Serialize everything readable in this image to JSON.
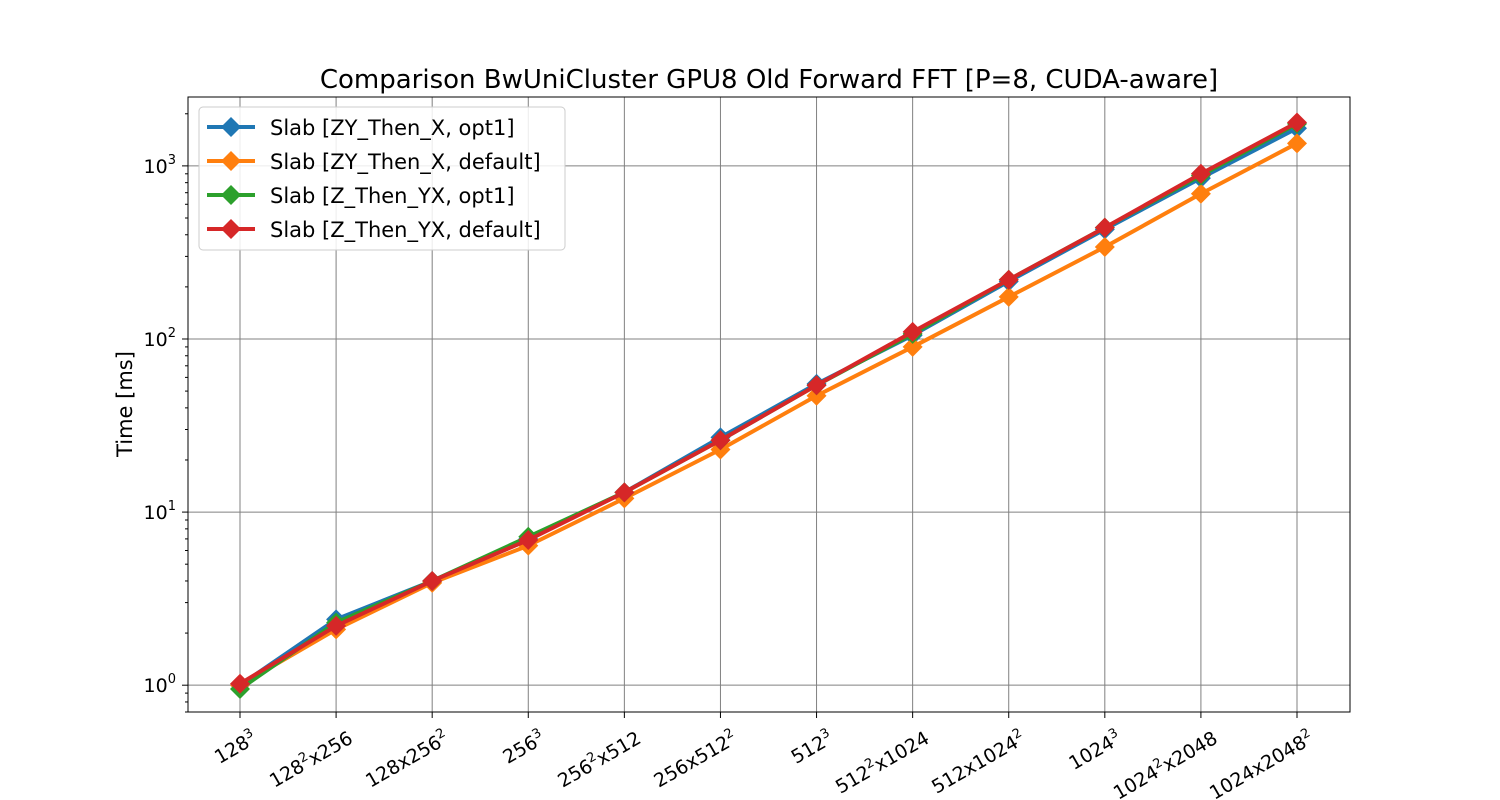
{
  "chart_data": {
    "type": "line",
    "title": "Comparison BwUniCluster GPU8 Old Forward FFT [P=8, CUDA-aware]",
    "xlabel": "",
    "ylabel": "Time [ms]",
    "yscale": "log",
    "ylim": [
      0.7,
      2500
    ],
    "grid": true,
    "legend_position": "top-left",
    "categories": [
      {
        "base": "128",
        "sup": "3",
        "tail": ""
      },
      {
        "base": "128",
        "sup": "2",
        "tail": "x256"
      },
      {
        "base": "128x256",
        "sup": "2",
        "tail": ""
      },
      {
        "base": "256",
        "sup": "3",
        "tail": ""
      },
      {
        "base": "256",
        "sup": "2",
        "tail": "x512"
      },
      {
        "base": "256x512",
        "sup": "2",
        "tail": ""
      },
      {
        "base": "512",
        "sup": "3",
        "tail": ""
      },
      {
        "base": "512",
        "sup": "2",
        "tail": "x1024"
      },
      {
        "base": "512x1024",
        "sup": "2",
        "tail": ""
      },
      {
        "base": "1024",
        "sup": "3",
        "tail": ""
      },
      {
        "base": "1024",
        "sup": "2",
        "tail": "x2048"
      },
      {
        "base": "1024x2048",
        "sup": "2",
        "tail": ""
      }
    ],
    "yticks": [
      {
        "value": 1,
        "base": "10",
        "sup": "0"
      },
      {
        "value": 10,
        "base": "10",
        "sup": "1"
      },
      {
        "value": 100,
        "base": "10",
        "sup": "2"
      },
      {
        "value": 1000,
        "base": "10",
        "sup": "3"
      }
    ],
    "series": [
      {
        "name": "Slab [ZY_Then_X, opt1]",
        "color": "#1f77b4",
        "values": [
          1.0,
          2.4,
          4.0,
          7.0,
          13.0,
          27.0,
          55.0,
          105.0,
          215.0,
          430.0,
          850.0,
          1650.0
        ]
      },
      {
        "name": "Slab [ZY_Then_X, default]",
        "color": "#ff7f0e",
        "values": [
          1.0,
          2.1,
          3.9,
          6.4,
          12.0,
          23.0,
          47.0,
          90.0,
          175.0,
          340.0,
          690.0,
          1350.0
        ]
      },
      {
        "name": "Slab [Z_Then_YX, opt1]",
        "color": "#2ca02c",
        "values": [
          0.95,
          2.3,
          4.0,
          7.2,
          13.0,
          26.0,
          54.0,
          107.0,
          220.0,
          440.0,
          880.0,
          1750.0
        ]
      },
      {
        "name": "Slab [Z_Then_YX, default]",
        "color": "#d62728",
        "values": [
          1.02,
          2.2,
          4.0,
          6.9,
          13.0,
          26.0,
          54.0,
          110.0,
          220.0,
          440.0,
          900.0,
          1780.0
        ]
      }
    ]
  }
}
